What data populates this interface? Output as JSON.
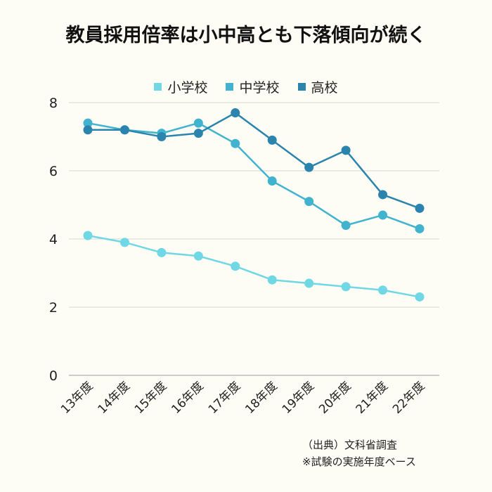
{
  "chart_data": {
    "type": "line",
    "title": "教員採用倍率は小中高とも下落傾向が続く",
    "categories": [
      "13年度",
      "14年度",
      "15年度",
      "16年度",
      "17年度",
      "18年度",
      "19年度",
      "20年度",
      "21年度",
      "22年度"
    ],
    "series": [
      {
        "name": "小学校",
        "color": "#6fd8e4",
        "values": [
          4.1,
          3.9,
          3.6,
          3.5,
          3.2,
          2.8,
          2.7,
          2.6,
          2.5,
          2.3
        ]
      },
      {
        "name": "中学校",
        "color": "#41b3cf",
        "values": [
          7.4,
          7.2,
          7.1,
          7.4,
          6.8,
          5.7,
          5.1,
          4.4,
          4.7,
          4.3
        ]
      },
      {
        "name": "高校",
        "color": "#2a84ae",
        "values": [
          7.2,
          7.2,
          7.0,
          7.1,
          7.7,
          6.9,
          6.1,
          6.6,
          5.3,
          4.9
        ]
      }
    ],
    "ylim": [
      0,
      8
    ],
    "yticks": [
      0,
      2,
      4,
      6,
      8
    ],
    "grid": true,
    "legend": "top"
  },
  "footer": {
    "source": "（出典）文科省調査",
    "note": "※試験の実施年度ベース"
  }
}
